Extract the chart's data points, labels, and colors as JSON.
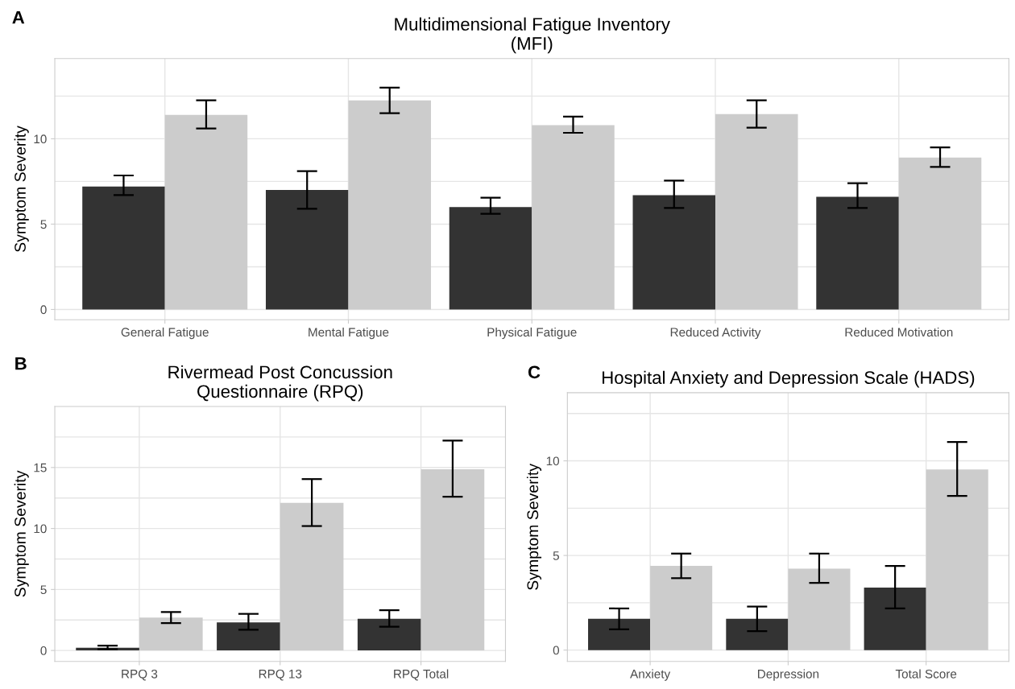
{
  "chart_data": [
    {
      "type": "bar",
      "title": "Multidimensional Fatigue Inventory\n(MFI)",
      "ylabel": "Symptom Severity",
      "annotations": [
        "A"
      ],
      "categories": [
        "General Fatigue",
        "Mental Fatigue",
        "Physical Fatigue",
        "Reduced Activity",
        "Reduced Motivation"
      ],
      "series": [
        {
          "color": "#333333",
          "values": [
            7.2,
            7.0,
            6.0,
            6.7,
            6.6
          ],
          "errors": [
            [
              6.7,
              7.85
            ],
            [
              5.9,
              8.1
            ],
            [
              5.6,
              6.55
            ],
            [
              5.95,
              7.55
            ],
            [
              5.95,
              7.4
            ]
          ]
        },
        {
          "color": "#cccccc",
          "values": [
            11.4,
            12.25,
            10.8,
            11.45,
            8.9
          ],
          "errors": [
            [
              10.6,
              12.25
            ],
            [
              11.5,
              13.0
            ],
            [
              10.35,
              11.3
            ],
            [
              10.65,
              12.25
            ],
            [
              8.35,
              9.5
            ]
          ]
        }
      ],
      "ylim": [
        -0.6,
        14.7
      ],
      "yticks": [
        0,
        {
          "value": 2.5,
          "label": null
        },
        5,
        {
          "value": 7.5,
          "label": null
        },
        10,
        {
          "value": 12.5,
          "label": null
        }
      ],
      "grid": true
    },
    {
      "type": "bar",
      "title": "Rivermead Post Concussion\nQuestionnaire (RPQ)",
      "ylabel": "Symptom Severity",
      "annotations": [
        "B"
      ],
      "categories": [
        "RPQ 3",
        "RPQ 13",
        "RPQ Total"
      ],
      "series": [
        {
          "color": "#333333",
          "values": [
            0.23,
            2.3,
            2.6
          ],
          "errors": [
            [
              0.1,
              0.4
            ],
            [
              1.7,
              3.0
            ],
            [
              1.95,
              3.3
            ]
          ]
        },
        {
          "color": "#cccccc",
          "values": [
            2.7,
            12.1,
            14.85
          ],
          "errors": [
            [
              2.25,
              3.15
            ],
            [
              10.2,
              14.05
            ],
            [
              12.6,
              17.2
            ]
          ]
        }
      ],
      "ylim": [
        -0.9,
        20.0
      ],
      "yticks": [
        0,
        {
          "value": 2.5,
          "label": null
        },
        5,
        {
          "value": 7.5,
          "label": null
        },
        10,
        {
          "value": 12.5,
          "label": null
        },
        15,
        {
          "value": 17.5,
          "label": null
        }
      ],
      "grid": true
    },
    {
      "type": "bar",
      "title": "Hospital Anxiety and Depression Scale (HADS)",
      "ylabel": "Symptom Severity",
      "annotations": [
        "C"
      ],
      "categories": [
        "Anxiety",
        "Depression",
        "Total Score"
      ],
      "series": [
        {
          "color": "#333333",
          "values": [
            1.65,
            1.65,
            3.3
          ],
          "errors": [
            [
              1.1,
              2.2
            ],
            [
              1.0,
              2.3
            ],
            [
              2.2,
              4.45
            ]
          ]
        },
        {
          "color": "#cccccc",
          "values": [
            4.45,
            4.3,
            9.55
          ],
          "errors": [
            [
              3.8,
              5.1
            ],
            [
              3.55,
              5.1
            ],
            [
              8.15,
              11.0
            ]
          ]
        }
      ],
      "ylim": [
        -0.6,
        13.6
      ],
      "yticks": [
        0,
        {
          "value": 2.5,
          "label": null
        },
        5,
        {
          "value": 7.5,
          "label": null
        },
        10,
        {
          "value": 12.5,
          "label": null
        }
      ],
      "grid": true
    }
  ]
}
